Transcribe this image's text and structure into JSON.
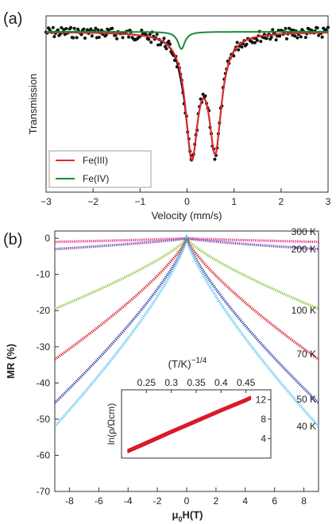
{
  "panel_a": {
    "label": "(a)",
    "xlabel": "Velocity (mm/s)",
    "ylabel": "Transmission",
    "xticks": [
      "−3",
      "−2",
      "−1",
      "0",
      "1",
      "2",
      "3"
    ],
    "legend": [
      "Fe(III)",
      "Fe(IV)"
    ]
  },
  "panel_b": {
    "label": "(b)",
    "ylabel": "MR (%)",
    "xlabel_main": "μ",
    "xlabel_sub": "0",
    "xlabel_rest": "H(T)",
    "yticks": [
      "0",
      "-10",
      "-20",
      "-30",
      "-40",
      "-50",
      "-60",
      "-70"
    ],
    "xticks": [
      "-8",
      "-6",
      "-4",
      "-2",
      "0",
      "2",
      "4",
      "6",
      "8"
    ],
    "temps": [
      "300 K",
      "200 K",
      "100 K",
      "70 K",
      "50 K",
      "40 K"
    ]
  },
  "inset": {
    "xlabel": "(T/K)",
    "xlabel_exp": "−1/4",
    "ylabel": "ln(ρ/Ωcm)",
    "xticks": [
      "0.25",
      "0.3",
      "0.35",
      "0.4",
      "0.45"
    ],
    "yticks": [
      "4",
      "8",
      "12"
    ]
  },
  "chart_data": [
    {
      "type": "scatter",
      "panel": "a",
      "xlabel": "Velocity (mm/s)",
      "ylabel": "Transmission",
      "xlim": [
        -3,
        3
      ],
      "series": [
        {
          "name": "Fe(III)",
          "color": "#e32b2b",
          "type": "line",
          "centers": [
            0.1,
            0.6
          ],
          "widths": [
            0.32,
            0.32
          ],
          "depths": [
            0.78,
            0.74
          ]
        },
        {
          "name": "Fe(IV)",
          "color": "#1a8a3a",
          "type": "line",
          "centers": [
            -0.12
          ],
          "widths": [
            0.18
          ],
          "depths": [
            0.32
          ]
        },
        {
          "color": "#111111",
          "type": "points",
          "note_visible": false
        }
      ]
    },
    {
      "type": "line",
      "panel": "b",
      "ylabel": "MR (%)",
      "xlim": [
        -9,
        9
      ],
      "ylim": [
        -70,
        2
      ],
      "series": [
        {
          "name": "300 K",
          "color": "#e0308a",
          "mr_at_9T": -1
        },
        {
          "name": "200 K",
          "color": "#7a3fb0",
          "mr_at_9T": -3
        },
        {
          "name": "100 K",
          "color": "#8cc83c",
          "mr_at_9T": -19.5
        },
        {
          "name": "70 K",
          "color": "#d81c28",
          "mr_at_9T": -33.5
        },
        {
          "name": "50 K",
          "color": "#2e3aa8",
          "mr_at_9T": -45.5
        },
        {
          "name": "40 K",
          "color": "#55c4ee",
          "mr_at_9T": -52
        }
      ]
    },
    {
      "type": "line",
      "panel": "b-inset",
      "xlabel": "(T/K)^-1/4",
      "ylabel": "ln(ρ/Ωcm)",
      "xlim": [
        0.2,
        0.5
      ],
      "ylim": [
        0,
        14
      ],
      "series": [
        {
          "color": "#d81c28",
          "x": [
            0.212,
            0.25,
            0.3,
            0.35,
            0.4,
            0.45,
            0.46
          ],
          "y": [
            1.4,
            3.1,
            5.4,
            7.6,
            9.8,
            11.9,
            12.4
          ]
        }
      ]
    }
  ]
}
